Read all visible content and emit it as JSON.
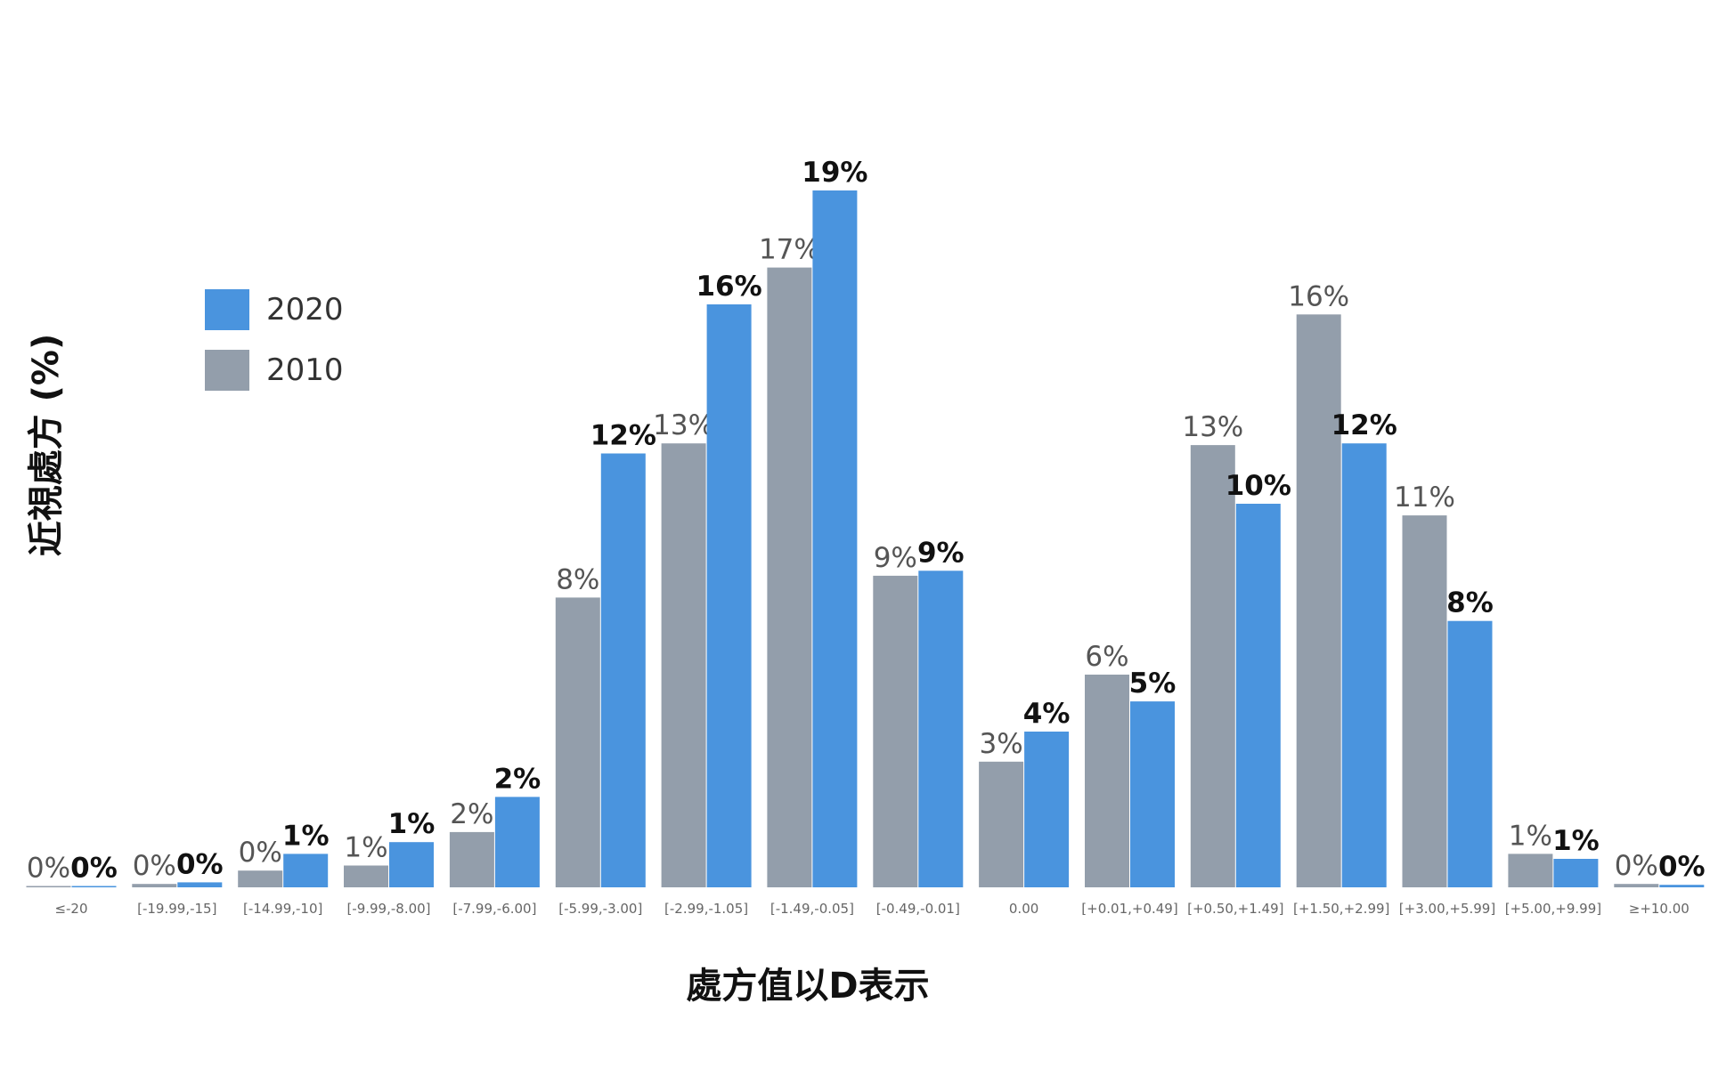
{
  "legend": [
    {
      "name": "2020",
      "color": "#4a94de"
    },
    {
      "name": "2010",
      "color": "#939eab"
    }
  ],
  "chart_data": {
    "type": "bar",
    "xlabel": "處方值以D表示",
    "ylabel": "近視處方 (%)",
    "categories": [
      "≤-20",
      "[-19.99,-15]",
      "[-14.99,-10]",
      "[-9.99,-8.00]",
      "[-7.99,-6.00]",
      "[-5.99,-3.00]",
      "[-2.99,-1.05]",
      "[-1.49,-0.05]",
      "[-0.49,-0.01]",
      "0.00",
      "[+0.01,+0.49]",
      "[+0.50,+1.49]",
      "[+1.50,+2.99]",
      "[+3.00,+5.99]",
      "[+5.00,+9.99]",
      "≥+10.00"
    ],
    "series": [
      {
        "name": "2010",
        "color": "#939eab",
        "values": [
          0.05,
          0.2,
          1.0,
          1.3,
          3.3,
          17.3,
          26.5,
          37.0,
          18.6,
          7.5,
          12.7,
          26.4,
          34.2,
          22.2,
          2.0,
          0.2
        ],
        "labels": [
          "0%",
          "0%",
          "0%",
          "1%",
          "2%",
          "8%",
          "13%",
          "17%",
          "9%",
          "3%",
          "6%",
          "13%",
          "16%",
          "11%",
          "1%",
          "0%"
        ]
      },
      {
        "name": "2020",
        "color": "#4a94de",
        "values": [
          0.05,
          0.3,
          2.0,
          2.7,
          5.4,
          25.9,
          34.8,
          41.6,
          18.9,
          9.3,
          11.1,
          22.9,
          26.5,
          15.9,
          1.7,
          0.15
        ],
        "labels": [
          "0%",
          "0%",
          "1%",
          "1%",
          "2%",
          "12%",
          "16%",
          "19%",
          "9%",
          "4%",
          "5%",
          "10%",
          "12%",
          "8%",
          "1%",
          "0%"
        ]
      }
    ],
    "ylim": [
      0,
      45
    ],
    "grid": false,
    "legend_position": "top-left"
  }
}
